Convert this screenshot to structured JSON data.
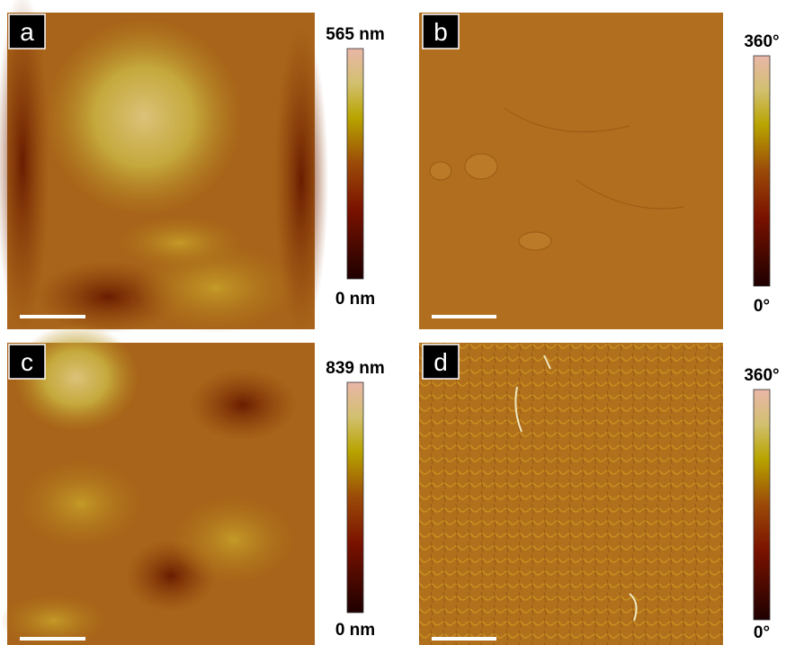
{
  "panels": [
    {
      "label": "a",
      "colorbar": {
        "max": "565 nm",
        "min": "0 nm"
      }
    },
    {
      "label": "b",
      "colorbar": {
        "max": "360°",
        "min": "0°"
      }
    },
    {
      "label": "c",
      "colorbar": {
        "max": "839 nm",
        "min": "0 nm"
      }
    },
    {
      "label": "d",
      "colorbar": {
        "max": "360°",
        "min": "0°"
      }
    }
  ]
}
